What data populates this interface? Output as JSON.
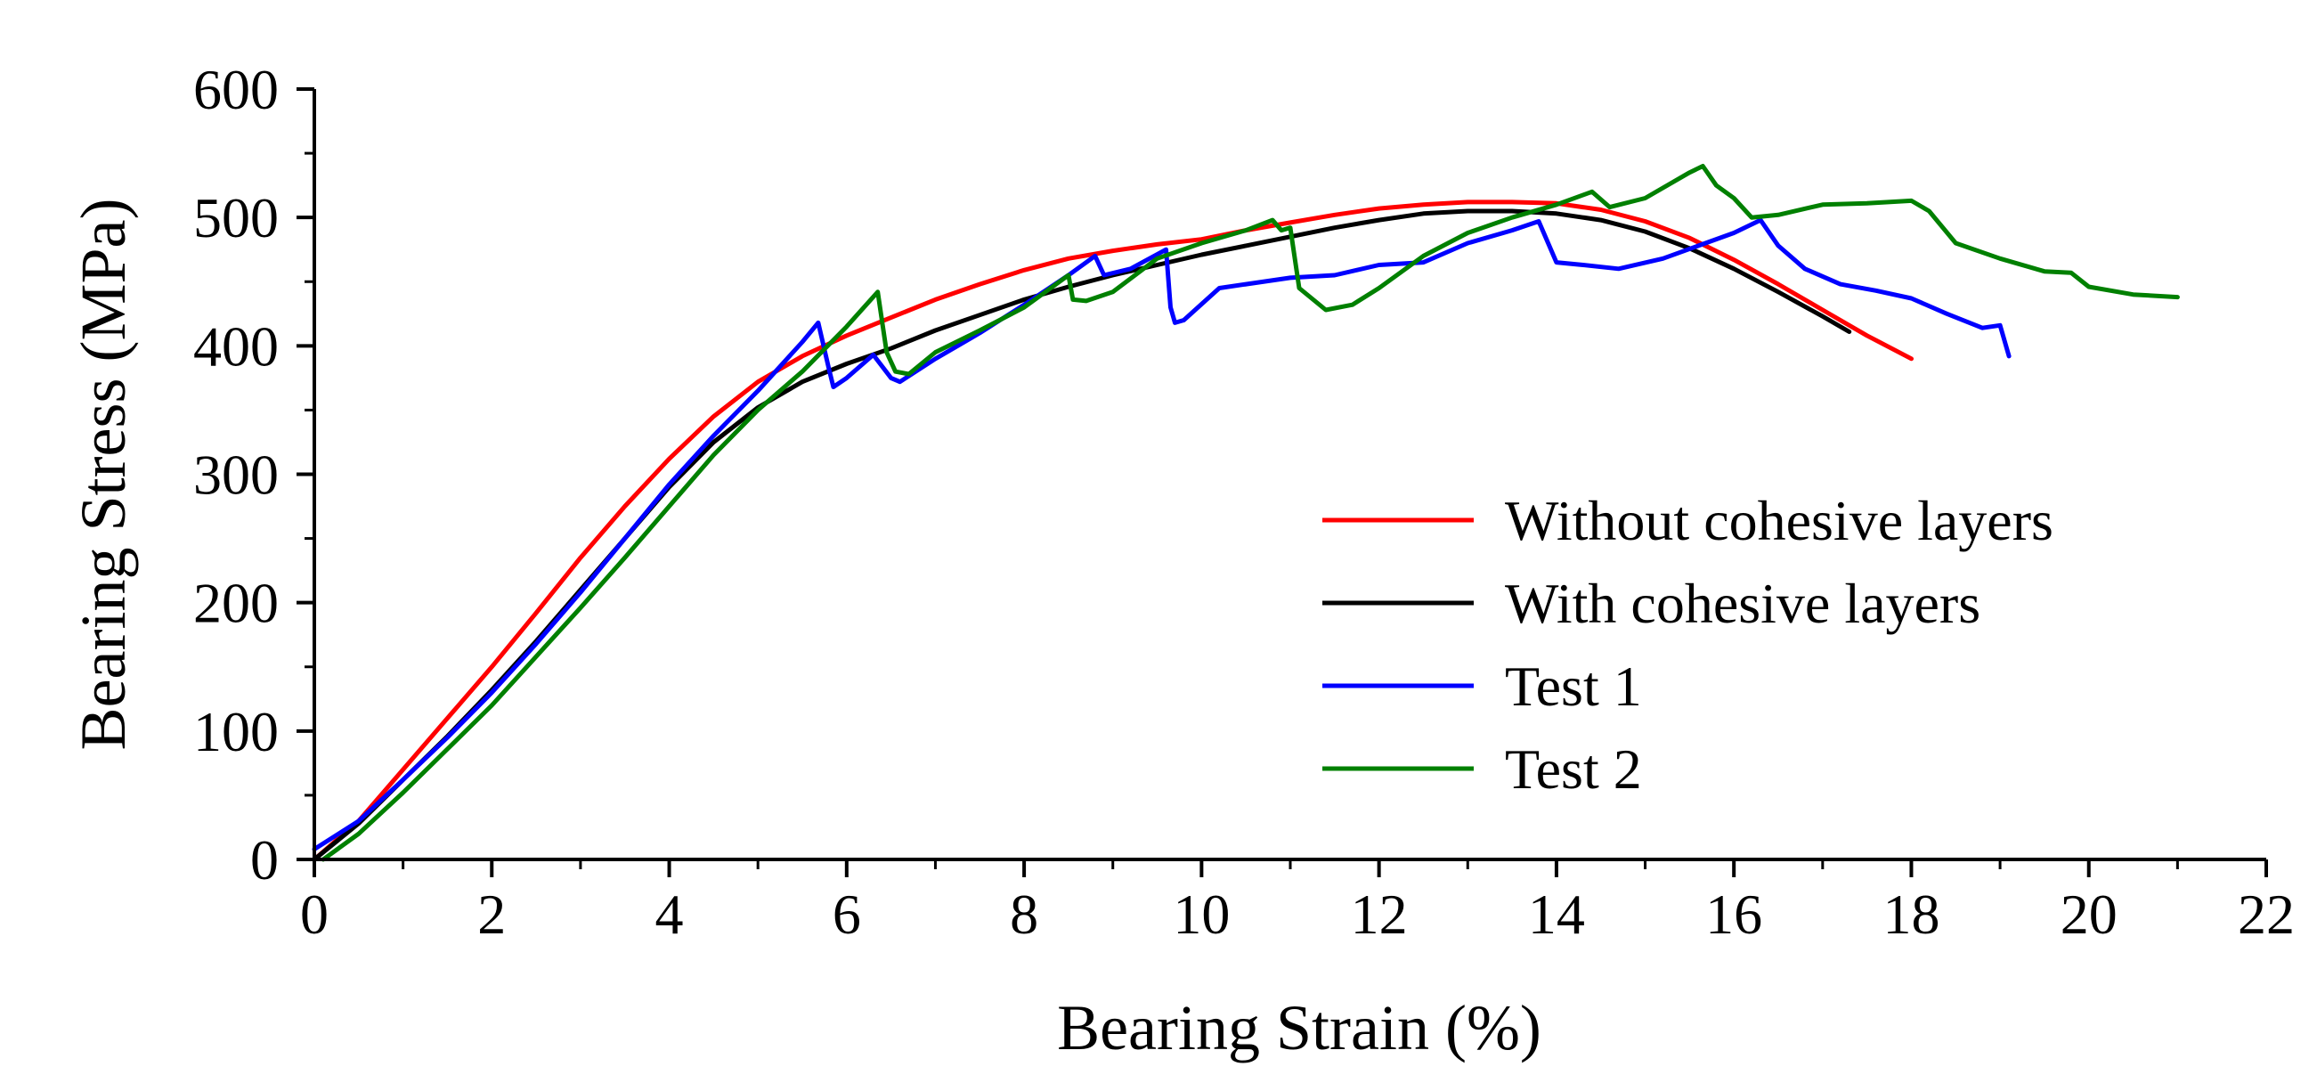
{
  "chart_data": {
    "type": "line",
    "title": "",
    "xlabel": "Bearing Strain (%)",
    "ylabel": "Bearing Stress (MPa)",
    "xlim": [
      0,
      22
    ],
    "ylim": [
      0,
      600
    ],
    "x_ticks": [
      0,
      2,
      4,
      6,
      8,
      10,
      12,
      14,
      16,
      18,
      20,
      22
    ],
    "y_ticks": [
      0,
      100,
      200,
      300,
      400,
      500,
      600
    ],
    "x_tick_labels": [
      "0",
      "2",
      "4",
      "6",
      "8",
      "10",
      "12",
      "14",
      "16",
      "18",
      "20",
      "22"
    ],
    "y_tick_labels": [
      "0",
      "100",
      "200",
      "300",
      "400",
      "500",
      "600"
    ],
    "grid": false,
    "legend_position": "center-right",
    "series": [
      {
        "name": "Without cohesive layers",
        "color": "#ff0000",
        "points": [
          [
            0,
            0
          ],
          [
            0.5,
            30
          ],
          [
            1,
            70
          ],
          [
            1.5,
            110
          ],
          [
            2,
            150
          ],
          [
            2.5,
            192
          ],
          [
            3,
            235
          ],
          [
            3.5,
            275
          ],
          [
            4,
            312
          ],
          [
            4.5,
            345
          ],
          [
            5,
            372
          ],
          [
            5.5,
            392
          ],
          [
            6,
            408
          ],
          [
            6.5,
            422
          ],
          [
            7,
            436
          ],
          [
            7.5,
            448
          ],
          [
            8,
            459
          ],
          [
            8.5,
            468
          ],
          [
            9,
            474
          ],
          [
            9.5,
            479
          ],
          [
            10,
            483
          ],
          [
            10.5,
            490
          ],
          [
            11,
            496
          ],
          [
            11.5,
            502
          ],
          [
            12,
            507
          ],
          [
            12.5,
            510
          ],
          [
            13,
            512
          ],
          [
            13.5,
            512
          ],
          [
            14,
            511
          ],
          [
            14.5,
            506
          ],
          [
            15,
            497
          ],
          [
            15.5,
            484
          ],
          [
            16,
            467
          ],
          [
            16.5,
            448
          ],
          [
            17,
            428
          ],
          [
            17.5,
            408
          ],
          [
            18,
            390
          ]
        ]
      },
      {
        "name": "With cohesive layers",
        "color": "#000000",
        "points": [
          [
            0,
            0
          ],
          [
            0.5,
            28
          ],
          [
            1,
            62
          ],
          [
            1.5,
            96
          ],
          [
            2,
            132
          ],
          [
            2.5,
            170
          ],
          [
            3,
            210
          ],
          [
            3.5,
            250
          ],
          [
            4,
            290
          ],
          [
            4.5,
            325
          ],
          [
            5,
            352
          ],
          [
            5.5,
            372
          ],
          [
            6,
            386
          ],
          [
            6.5,
            398
          ],
          [
            7,
            412
          ],
          [
            7.5,
            424
          ],
          [
            8,
            436
          ],
          [
            8.5,
            446
          ],
          [
            9,
            455
          ],
          [
            9.5,
            463
          ],
          [
            10,
            471
          ],
          [
            10.5,
            478
          ],
          [
            11,
            485
          ],
          [
            11.5,
            492
          ],
          [
            12,
            498
          ],
          [
            12.5,
            503
          ],
          [
            13,
            505
          ],
          [
            13.5,
            505
          ],
          [
            14,
            503
          ],
          [
            14.5,
            498
          ],
          [
            15,
            489
          ],
          [
            15.5,
            476
          ],
          [
            16,
            460
          ],
          [
            16.5,
            442
          ],
          [
            17,
            423
          ],
          [
            17.3,
            411
          ]
        ]
      },
      {
        "name": "Test 1",
        "color": "#0000ff",
        "points": [
          [
            0,
            8
          ],
          [
            0.5,
            30
          ],
          [
            1,
            62
          ],
          [
            1.5,
            95
          ],
          [
            2,
            130
          ],
          [
            2.5,
            168
          ],
          [
            3,
            208
          ],
          [
            3.5,
            250
          ],
          [
            4,
            292
          ],
          [
            4.5,
            330
          ],
          [
            5,
            365
          ],
          [
            5.5,
            403
          ],
          [
            5.68,
            418
          ],
          [
            5.8,
            382
          ],
          [
            5.85,
            368
          ],
          [
            6,
            375
          ],
          [
            6.3,
            393
          ],
          [
            6.5,
            375
          ],
          [
            6.6,
            372
          ],
          [
            7,
            390
          ],
          [
            7.5,
            410
          ],
          [
            8,
            432
          ],
          [
            8.5,
            455
          ],
          [
            8.8,
            470
          ],
          [
            8.9,
            455
          ],
          [
            9.2,
            460
          ],
          [
            9.6,
            475
          ],
          [
            9.65,
            430
          ],
          [
            9.7,
            418
          ],
          [
            9.8,
            420
          ],
          [
            10.2,
            445
          ],
          [
            10.5,
            448
          ],
          [
            11,
            453
          ],
          [
            11.5,
            455
          ],
          [
            12,
            463
          ],
          [
            12.5,
            465
          ],
          [
            13,
            480
          ],
          [
            13.5,
            490
          ],
          [
            13.8,
            497
          ],
          [
            14,
            465
          ],
          [
            14.3,
            463
          ],
          [
            14.7,
            460
          ],
          [
            15.2,
            468
          ],
          [
            15.6,
            478
          ],
          [
            16,
            488
          ],
          [
            16.3,
            498
          ],
          [
            16.5,
            478
          ],
          [
            16.8,
            460
          ],
          [
            17.2,
            448
          ],
          [
            17.6,
            443
          ],
          [
            18,
            437
          ],
          [
            18.4,
            425
          ],
          [
            18.8,
            414
          ],
          [
            19,
            416
          ],
          [
            19.1,
            392
          ]
        ]
      },
      {
        "name": "Test 2",
        "color": "#008000",
        "points": [
          [
            0.1,
            0
          ],
          [
            0.5,
            20
          ],
          [
            1,
            52
          ],
          [
            1.5,
            86
          ],
          [
            2,
            120
          ],
          [
            2.5,
            158
          ],
          [
            3,
            196
          ],
          [
            3.5,
            235
          ],
          [
            4,
            275
          ],
          [
            4.5,
            315
          ],
          [
            5,
            350
          ],
          [
            5.5,
            380
          ],
          [
            6,
            415
          ],
          [
            6.35,
            442
          ],
          [
            6.45,
            395
          ],
          [
            6.55,
            380
          ],
          [
            6.7,
            378
          ],
          [
            7,
            395
          ],
          [
            7.5,
            412
          ],
          [
            8,
            430
          ],
          [
            8.5,
            455
          ],
          [
            8.55,
            436
          ],
          [
            8.7,
            435
          ],
          [
            9,
            442
          ],
          [
            9.5,
            468
          ],
          [
            10,
            480
          ],
          [
            10.5,
            490
          ],
          [
            10.8,
            498
          ],
          [
            10.9,
            490
          ],
          [
            11,
            492
          ],
          [
            11.1,
            445
          ],
          [
            11.4,
            428
          ],
          [
            11.7,
            432
          ],
          [
            12,
            445
          ],
          [
            12.5,
            470
          ],
          [
            13,
            488
          ],
          [
            13.5,
            500
          ],
          [
            14,
            510
          ],
          [
            14.4,
            520
          ],
          [
            14.6,
            508
          ],
          [
            15,
            515
          ],
          [
            15.5,
            535
          ],
          [
            15.65,
            540
          ],
          [
            15.8,
            525
          ],
          [
            16,
            515
          ],
          [
            16.2,
            500
          ],
          [
            16.5,
            502
          ],
          [
            17,
            510
          ],
          [
            17.5,
            511
          ],
          [
            18,
            513
          ],
          [
            18.2,
            505
          ],
          [
            18.5,
            480
          ],
          [
            19,
            468
          ],
          [
            19.5,
            458
          ],
          [
            19.8,
            457
          ],
          [
            20,
            446
          ],
          [
            20.5,
            440
          ],
          [
            21,
            438
          ]
        ]
      }
    ]
  }
}
